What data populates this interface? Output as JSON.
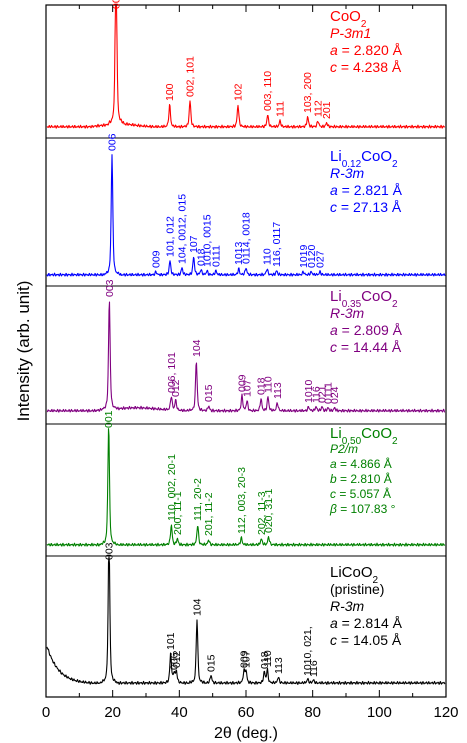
{
  "chart_data": {
    "type": "line",
    "xlabel": "2θ (deg.)",
    "ylabel": "Intensity (arb. unit)",
    "xlim": [
      0,
      120
    ],
    "x_ticks": [
      0,
      20,
      40,
      60,
      80,
      100,
      120
    ],
    "panels": [
      {
        "name_parts": [
          {
            "t": "CoO"
          },
          {
            "t": "2",
            "sub": true
          }
        ],
        "color": "#ff0000",
        "info": [
          {
            "parts": [
              {
                "t": "P-3m1",
                "i": true
              }
            ]
          },
          {
            "parts": [
              {
                "t": "a",
                "i": true
              },
              {
                "t": " = 2.820 Å"
              }
            ]
          },
          {
            "parts": [
              {
                "t": "c",
                "i": true
              },
              {
                "t": " = 4.238 Å"
              }
            ]
          }
        ],
        "info_size": 14,
        "peaks": [
          {
            "x": 21.0,
            "h": 180,
            "label": "001"
          },
          {
            "x": 37.1,
            "h": 22,
            "label": "100"
          },
          {
            "x": 43.2,
            "h": 26,
            "label": "002, 101"
          },
          {
            "x": 57.6,
            "h": 22,
            "label": "102"
          },
          {
            "x": 66.5,
            "h": 12,
            "label": "003, 110"
          },
          {
            "x": 70.2,
            "h": 6,
            "label": "111"
          },
          {
            "x": 78.5,
            "h": 10,
            "label": "103, 200"
          },
          {
            "x": 81.6,
            "h": 6,
            "label": "112"
          },
          {
            "x": 84.2,
            "h": 4,
            "label": "201"
          }
        ]
      },
      {
        "name_parts": [
          {
            "t": "Li"
          },
          {
            "t": "0.12",
            "sub": true
          },
          {
            "t": "CoO"
          },
          {
            "t": "2",
            "sub": true
          }
        ],
        "color": "#0000ff",
        "info": [
          {
            "parts": [
              {
                "t": "R-3m",
                "i": true
              }
            ]
          },
          {
            "parts": [
              {
                "t": "a",
                "i": true
              },
              {
                "t": " = 2.821 Å"
              }
            ]
          },
          {
            "parts": [
              {
                "t": "c",
                "i": true
              },
              {
                "t": " = 27.13 Å"
              }
            ]
          }
        ],
        "info_size": 14,
        "peaks": [
          {
            "x": 19.8,
            "h": 120,
            "label": "006"
          },
          {
            "x": 33.0,
            "h": 3,
            "label": "009"
          },
          {
            "x": 37.2,
            "h": 14,
            "label": "101, 012"
          },
          {
            "x": 40.8,
            "h": 7,
            "label": "104, 0012, 015"
          },
          {
            "x": 44.3,
            "h": 18,
            "label": "107"
          },
          {
            "x": 46.5,
            "h": 5,
            "label": "018"
          },
          {
            "x": 48.3,
            "h": 4,
            "label": "1010, 0015"
          },
          {
            "x": 51.0,
            "h": 4,
            "label": "0111"
          },
          {
            "x": 57.8,
            "h": 6,
            "label": "1013"
          },
          {
            "x": 60.0,
            "h": 7,
            "label": "0114, 0018"
          },
          {
            "x": 66.3,
            "h": 6,
            "label": "110"
          },
          {
            "x": 69.2,
            "h": 4,
            "label": "116, 0117"
          },
          {
            "x": 77.2,
            "h": 3,
            "label": "1019"
          },
          {
            "x": 79.6,
            "h": 3,
            "label": "0120"
          },
          {
            "x": 82.2,
            "h": 3,
            "label": "027"
          }
        ]
      },
      {
        "name_parts": [
          {
            "t": "Li"
          },
          {
            "t": "0.35",
            "sub": true
          },
          {
            "t": "CoO"
          },
          {
            "t": "2",
            "sub": true
          }
        ],
        "color": "#800080",
        "info": [
          {
            "parts": [
              {
                "t": "R-3m",
                "i": true
              }
            ]
          },
          {
            "parts": [
              {
                "t": "a",
                "i": true
              },
              {
                "t": " = 2.809 Å"
              }
            ]
          },
          {
            "parts": [
              {
                "t": "c",
                "i": true
              },
              {
                "t": " = 14.44 Å"
              }
            ]
          }
        ],
        "info_size": 14,
        "peaks": [
          {
            "x": 19.0,
            "h": 110,
            "label": "003"
          },
          {
            "x": 37.6,
            "h": 14,
            "label": "006, 101"
          },
          {
            "x": 38.9,
            "h": 10,
            "label": "012"
          },
          {
            "x": 45.1,
            "h": 50,
            "label": "104"
          },
          {
            "x": 48.8,
            "h": 5,
            "label": "015"
          },
          {
            "x": 58.8,
            "h": 15,
            "label": "009"
          },
          {
            "x": 60.3,
            "h": 10,
            "label": "107"
          },
          {
            "x": 64.5,
            "h": 12,
            "label": "018"
          },
          {
            "x": 66.6,
            "h": 14,
            "label": "110"
          },
          {
            "x": 69.4,
            "h": 8,
            "label": "113"
          },
          {
            "x": 78.8,
            "h": 4,
            "label": "1010"
          },
          {
            "x": 81.0,
            "h": 4,
            "label": "116"
          },
          {
            "x": 82.8,
            "h": 4,
            "label": "021"
          },
          {
            "x": 84.6,
            "h": 3,
            "label": "0111"
          },
          {
            "x": 86.6,
            "h": 3,
            "label": "024"
          }
        ]
      },
      {
        "name_parts": [
          {
            "t": "Li"
          },
          {
            "t": "0.50",
            "sub": true
          },
          {
            "t": "CoO"
          },
          {
            "t": "2",
            "sub": true
          }
        ],
        "color": "#008000",
        "info": [
          {
            "parts": [
              {
                "t": "P2/m",
                "i": true
              }
            ]
          },
          {
            "parts": [
              {
                "t": "a",
                "i": true
              },
              {
                "t": " = 4.866 Å"
              }
            ]
          },
          {
            "parts": [
              {
                "t": "b",
                "i": true
              },
              {
                "t": " = 2.810 Å"
              }
            ]
          },
          {
            "parts": [
              {
                "t": "c",
                "i": true
              },
              {
                "t": " = 5.057 Å"
              }
            ]
          },
          {
            "parts": [
              {
                "t": "β",
                "i": true
              },
              {
                "t": " = 107.83 °"
              }
            ]
          }
        ],
        "info_size": 12,
        "peaks": [
          {
            "x": 18.8,
            "h": 120,
            "label": "001"
          },
          {
            "x": 37.6,
            "h": 20,
            "label": "110, 002, 20-1"
          },
          {
            "x": 39.4,
            "h": 6,
            "label": "200, 11-1"
          },
          {
            "x": 45.5,
            "h": 20,
            "label": "111, 20-2"
          },
          {
            "x": 48.8,
            "h": 5,
            "label": "201, 11-2"
          },
          {
            "x": 58.6,
            "h": 7,
            "label": "112, 003, 20-3"
          },
          {
            "x": 64.6,
            "h": 6,
            "label": "202, 11-3"
          },
          {
            "x": 66.8,
            "h": 8,
            "label": "020, 31-1"
          }
        ]
      },
      {
        "name_parts": [
          {
            "t": "LiCoO"
          },
          {
            "t": "2",
            "sub": true
          }
        ],
        "color": "#000000",
        "info": [
          {
            "parts": [
              {
                "t": "(pristine)"
              }
            ]
          },
          {
            "parts": [
              {
                "t": "R-3m",
                "i": true
              }
            ]
          },
          {
            "parts": [
              {
                "t": "a",
                "i": true
              },
              {
                "t": " = 2.814 Å"
              }
            ]
          },
          {
            "parts": [
              {
                "t": "c",
                "i": true
              },
              {
                "t": " = 14.05 Å"
              }
            ]
          }
        ],
        "info_size": 14,
        "peaks": [
          {
            "x": 18.9,
            "h": 150,
            "label": "003"
          },
          {
            "x": 37.4,
            "h": 30,
            "label": "101"
          },
          {
            "x": 38.4,
            "h": 10,
            "label": "006"
          },
          {
            "x": 39.1,
            "h": 12,
            "label": "012"
          },
          {
            "x": 45.3,
            "h": 64,
            "label": "104"
          },
          {
            "x": 49.5,
            "h": 8,
            "label": "015"
          },
          {
            "x": 59.4,
            "h": 12,
            "label": "009"
          },
          {
            "x": 60.0,
            "h": 12,
            "label": "107"
          },
          {
            "x": 65.5,
            "h": 11,
            "label": "018"
          },
          {
            "x": 66.4,
            "h": 13,
            "label": "110"
          },
          {
            "x": 69.7,
            "h": 6,
            "label": "113"
          },
          {
            "x": 78.5,
            "h": 4,
            "label": "1010, 021,"
          },
          {
            "x": 80.2,
            "h": 3,
            "label": "116"
          }
        ]
      }
    ]
  }
}
